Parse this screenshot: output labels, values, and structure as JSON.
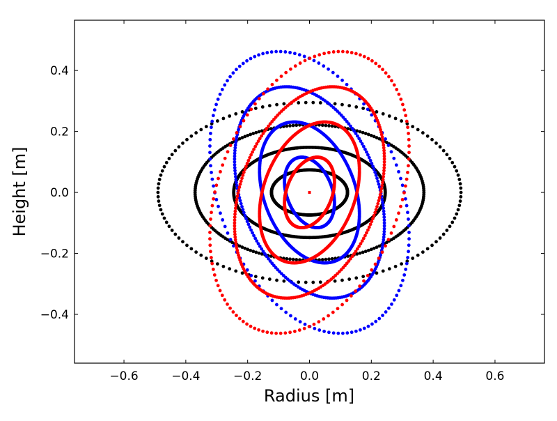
{
  "chart_data": {
    "type": "scatter",
    "title": "",
    "xlabel": "Radius [m]",
    "ylabel": "Height [m]",
    "xlim": [
      -0.76,
      0.76
    ],
    "ylim": [
      -0.56,
      0.565
    ],
    "xticks": [
      -0.6,
      -0.4,
      -0.2,
      0.0,
      0.2,
      0.4,
      0.6
    ],
    "xtick_labels": [
      "−0.6",
      "−0.4",
      "−0.2",
      "0.0",
      "0.2",
      "0.4",
      "0.6"
    ],
    "yticks": [
      -0.4,
      -0.2,
      0.0,
      0.2,
      0.4
    ],
    "ytick_labels": [
      "−0.4",
      "−0.2",
      "0.0",
      "0.2",
      "0.4"
    ],
    "grid": false,
    "legend": "none",
    "series": [
      {
        "color": "#000000",
        "rotation_deg": 0,
        "ellipses": [
          {
            "semi_major": 0.49,
            "semi_minor": 0.295,
            "points": 130
          },
          {
            "semi_major": 0.37,
            "semi_minor": 0.222,
            "points": 220
          },
          {
            "semi_major": 0.245,
            "semi_minor": 0.148,
            "points": 320
          },
          {
            "semi_major": 0.123,
            "semi_minor": 0.074,
            "points": 400
          }
        ]
      },
      {
        "color": "#0000ff",
        "rotation_deg": 110,
        "ellipses": [
          {
            "semi_major": 0.48,
            "semi_minor": 0.295,
            "points": 130
          },
          {
            "semi_major": 0.36,
            "semi_minor": 0.222,
            "points": 220
          },
          {
            "semi_major": 0.24,
            "semi_minor": 0.148,
            "points": 320
          },
          {
            "semi_major": 0.12,
            "semi_minor": 0.074,
            "points": 400
          }
        ]
      },
      {
        "color": "#ff0000",
        "rotation_deg": 70,
        "ellipses": [
          {
            "semi_major": 0.48,
            "semi_minor": 0.295,
            "points": 130
          },
          {
            "semi_major": 0.36,
            "semi_minor": 0.222,
            "points": 220
          },
          {
            "semi_major": 0.24,
            "semi_minor": 0.148,
            "points": 320
          },
          {
            "semi_major": 0.12,
            "semi_minor": 0.074,
            "points": 400
          }
        ]
      }
    ],
    "center_point": {
      "x": 0.0,
      "y": 0.0,
      "color": "#ff0000"
    }
  }
}
